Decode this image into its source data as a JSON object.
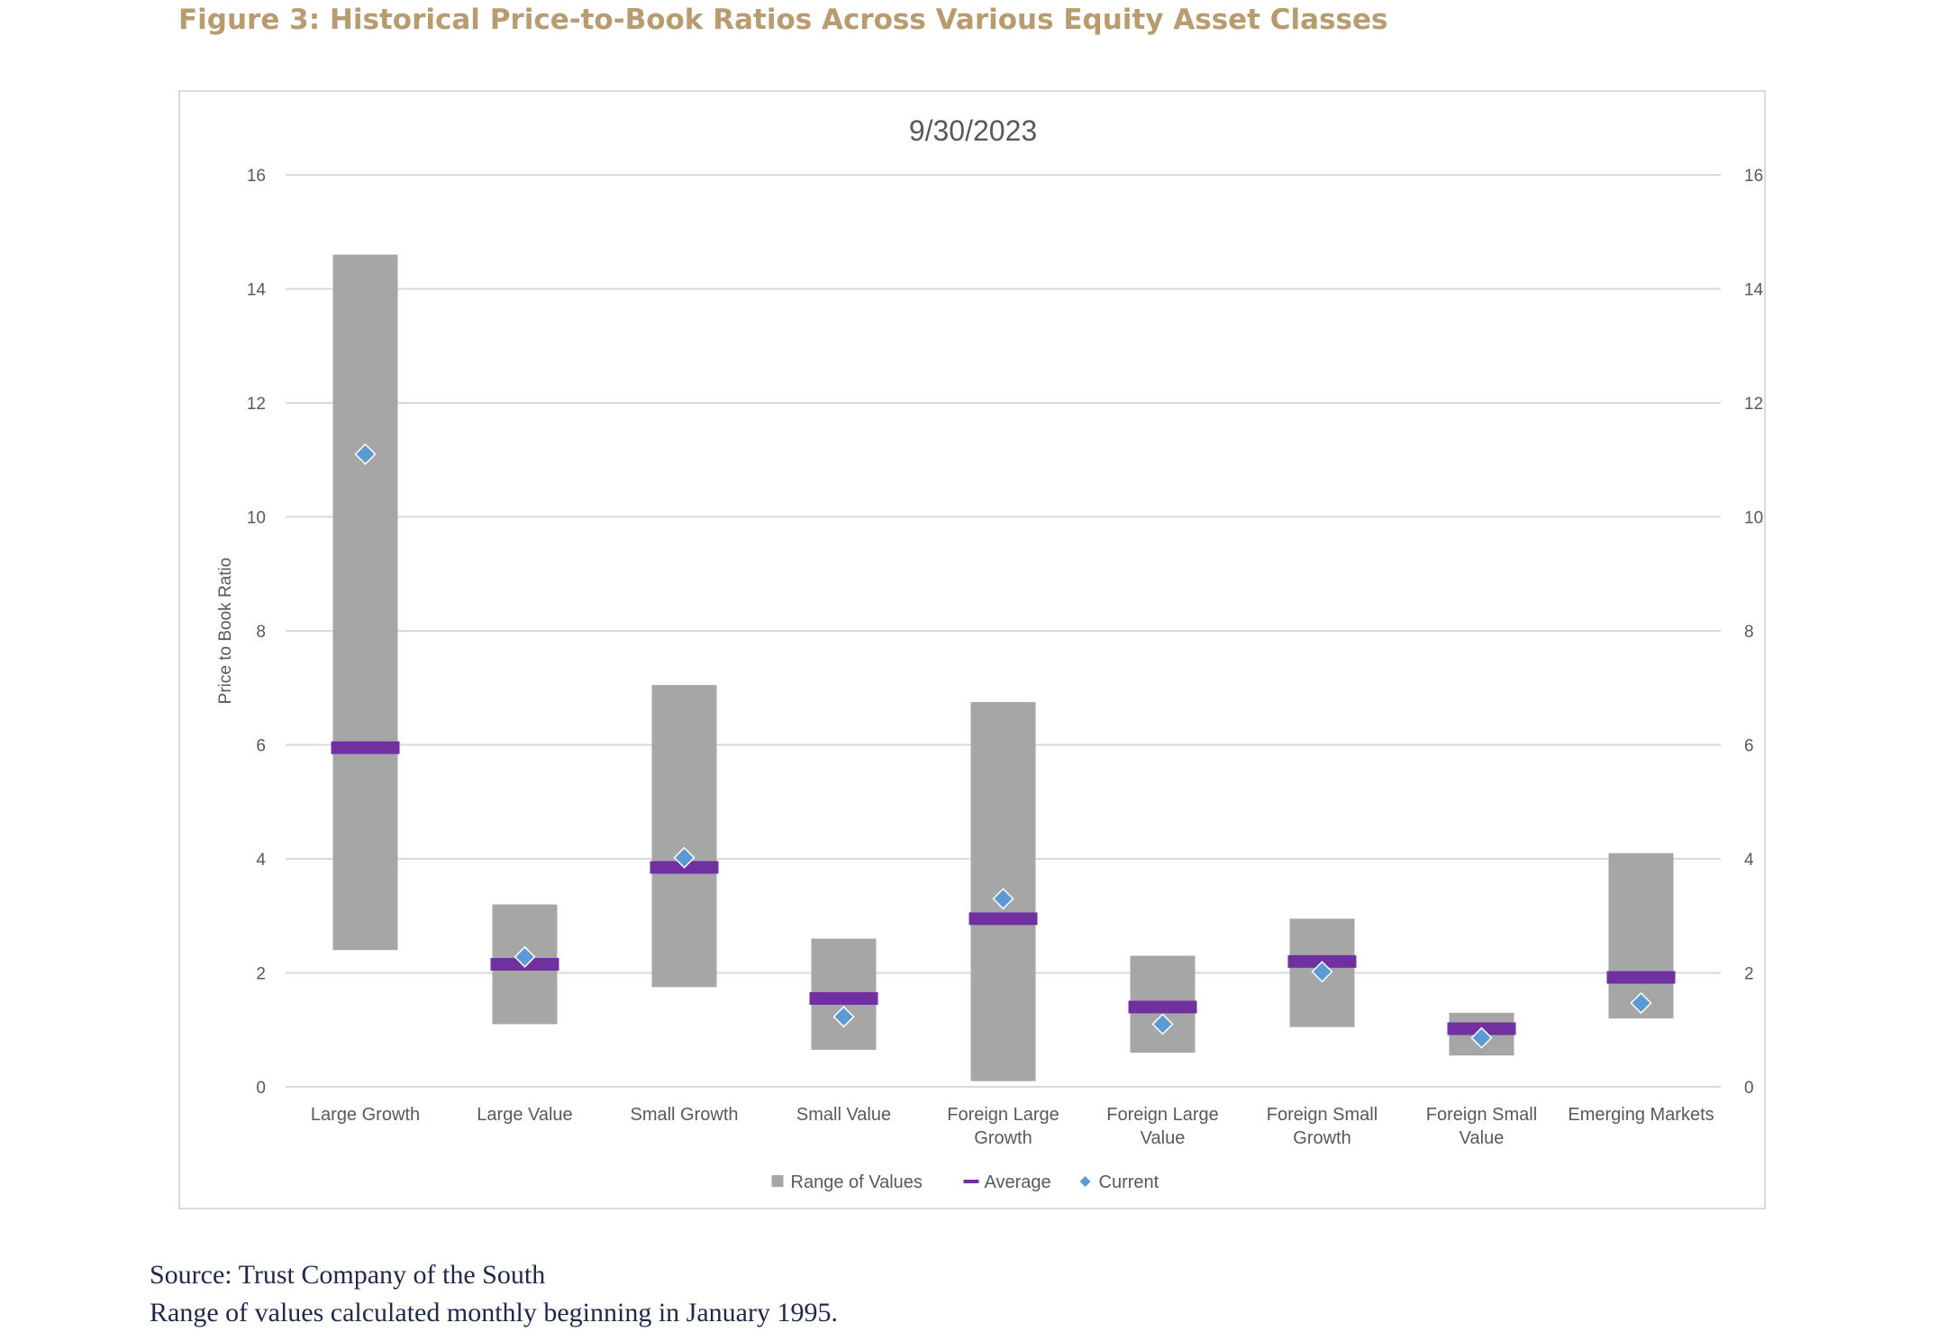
{
  "figure_title": "Figure 3: Historical Price-to-Book Ratios Across Various Equity Asset Classes",
  "source_lines": [
    "Source: Trust Company of the South",
    "Range of values calculated monthly beginning in January 1995."
  ],
  "colors": {
    "title": "#b89b6e",
    "range": "#a6a6a6",
    "average": "#7030a0",
    "current": "#5b9bd5",
    "grid": "#d9d9d9",
    "axis_text": "#595959"
  },
  "chart_data": {
    "type": "bar",
    "title": "9/30/2023",
    "ylabel": "Price to Book Ratio",
    "ylim": [
      0,
      16
    ],
    "yticks": [
      0,
      2,
      4,
      6,
      8,
      10,
      12,
      14,
      16
    ],
    "secondary_y_axis": true,
    "grid": true,
    "legend_position": "bottom",
    "categories": [
      [
        "Large Growth"
      ],
      [
        "Large Value"
      ],
      [
        "Small Growth"
      ],
      [
        "Small Value"
      ],
      [
        "Foreign Large",
        "Growth"
      ],
      [
        "Foreign Large",
        "Value"
      ],
      [
        "Foreign Small",
        "Growth"
      ],
      [
        "Foreign Small",
        "Value"
      ],
      [
        "Emerging Markets"
      ]
    ],
    "series": [
      {
        "name": "Range of Values",
        "marker": "square",
        "low": [
          2.4,
          1.1,
          1.75,
          0.65,
          0.1,
          0.6,
          1.05,
          0.55,
          1.2
        ],
        "high": [
          14.6,
          3.2,
          7.05,
          2.6,
          6.75,
          2.3,
          2.95,
          1.3,
          4.1
        ]
      },
      {
        "name": "Average",
        "marker": "dash",
        "values": [
          5.95,
          2.15,
          3.85,
          1.55,
          2.95,
          1.4,
          2.2,
          1.02,
          1.92
        ]
      },
      {
        "name": "Current",
        "marker": "diamond",
        "values": [
          11.1,
          2.28,
          4.02,
          1.23,
          3.3,
          1.1,
          2.02,
          0.86,
          1.47
        ]
      }
    ]
  }
}
